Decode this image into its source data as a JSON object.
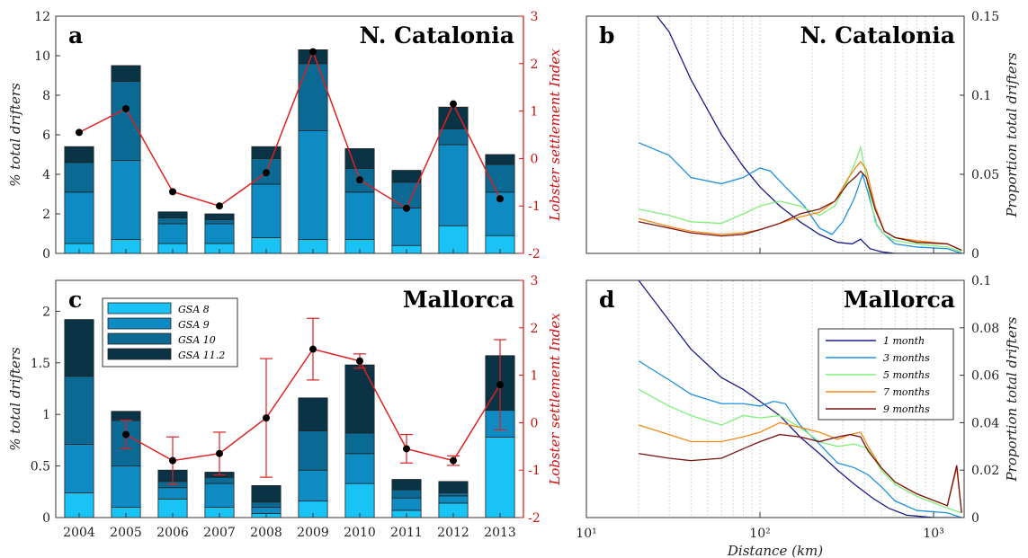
{
  "chart_data": [
    {
      "id": "a",
      "type": "bar",
      "panel_label": "a",
      "title": "N. Catalonia",
      "ylabel": "% total drifters",
      "y2label": "Lobster settlement Index",
      "categories": [
        "2004",
        "2005",
        "2006",
        "2007",
        "2008",
        "2009",
        "2010",
        "2011",
        "2012",
        "2013"
      ],
      "ylim": [
        0,
        12
      ],
      "yticks": [
        0,
        2,
        4,
        6,
        8,
        10,
        12
      ],
      "y2lim": [
        -2,
        3
      ],
      "y2ticks": [
        -2,
        -1,
        0,
        1,
        2,
        3
      ],
      "series": [
        {
          "name": "GSA 8",
          "color": "#19c3f5",
          "values": [
            0.5,
            0.7,
            0.5,
            0.5,
            0.8,
            0.7,
            0.7,
            0.4,
            1.4,
            0.9
          ]
        },
        {
          "name": "GSA 9",
          "color": "#0d8bc2",
          "values": [
            2.6,
            4.0,
            1.0,
            1.0,
            2.7,
            5.5,
            2.4,
            1.9,
            4.1,
            2.2
          ]
        },
        {
          "name": "GSA 10",
          "color": "#0a6a93",
          "values": [
            1.5,
            4.0,
            0.3,
            0.2,
            1.3,
            3.4,
            1.2,
            1.3,
            0.8,
            1.4
          ]
        },
        {
          "name": "GSA 11.2",
          "color": "#0a3345",
          "values": [
            0.8,
            0.8,
            0.3,
            0.3,
            0.6,
            0.7,
            1.0,
            0.6,
            1.1,
            0.5
          ]
        }
      ],
      "index_line": {
        "color": "#e02020",
        "values": [
          0.55,
          1.05,
          -0.7,
          -1.0,
          -0.3,
          2.25,
          -0.45,
          -1.05,
          1.15,
          -0.85
        ]
      }
    },
    {
      "id": "c",
      "type": "bar",
      "panel_label": "c",
      "title": "Mallorca",
      "ylabel": "% total drifters",
      "y2label": "Lobster settlement Index",
      "categories": [
        "2004",
        "2005",
        "2006",
        "2007",
        "2008",
        "2009",
        "2010",
        "2011",
        "2012",
        "2013"
      ],
      "ylim": [
        0,
        2.3
      ],
      "yticks": [
        0,
        0.5,
        1,
        1.5,
        2
      ],
      "y2lim": [
        -2,
        3
      ],
      "y2ticks": [
        -2,
        -1,
        0,
        1,
        2,
        3
      ],
      "series": [
        {
          "name": "GSA 8",
          "color": "#19c3f5",
          "values": [
            0.24,
            0.1,
            0.18,
            0.1,
            0.04,
            0.16,
            0.33,
            0.07,
            0.14,
            0.78
          ]
        },
        {
          "name": "GSA 9",
          "color": "#0d8bc2",
          "values": [
            0.47,
            0.4,
            0.11,
            0.23,
            0.06,
            0.3,
            0.29,
            0.12,
            0.07,
            0.26
          ]
        },
        {
          "name": "GSA 10",
          "color": "#0a6a93",
          "values": [
            0.66,
            0.44,
            0.06,
            0.06,
            0.05,
            0.38,
            0.2,
            0.08,
            0.03,
            0.0
          ]
        },
        {
          "name": "GSA 11.2",
          "color": "#0a3345",
          "values": [
            0.55,
            0.09,
            0.11,
            0.05,
            0.16,
            0.32,
            0.66,
            0.1,
            0.11,
            0.53
          ]
        }
      ],
      "index_line": {
        "color": "#e02020",
        "values": [
          null,
          -0.25,
          -0.8,
          -0.65,
          0.1,
          1.55,
          1.3,
          -0.55,
          -0.8,
          0.8
        ]
      },
      "index_error": [
        null,
        0.3,
        0.5,
        0.45,
        1.25,
        0.65,
        0.15,
        0.3,
        0.1,
        0.95
      ],
      "legend": {
        "position": "top-left",
        "entries": [
          "GSA 8",
          "GSA 9",
          "GSA 10",
          "GSA 11.2"
        ]
      }
    },
    {
      "id": "b",
      "type": "line",
      "panel_label": "b",
      "title": "N. Catalonia",
      "ylabel": "Proportion total drifters",
      "xscale": "log",
      "xlim": [
        10,
        1500
      ],
      "ylim": [
        0,
        0.15
      ],
      "yticks": [
        0,
        0.05,
        0.1,
        0.15
      ],
      "ytick_labels": [
        "0",
        "0.05",
        "0.1",
        "0.15"
      ],
      "grid_x": true,
      "series": [
        {
          "name": "1 month",
          "color": "#1a1a8c",
          "points": [
            [
              20,
              0.165
            ],
            [
              30,
              0.14
            ],
            [
              40,
              0.11
            ],
            [
              60,
              0.075
            ],
            [
              80,
              0.055
            ],
            [
              100,
              0.042
            ],
            [
              130,
              0.03
            ],
            [
              170,
              0.02
            ],
            [
              220,
              0.012
            ],
            [
              280,
              0.007
            ],
            [
              340,
              0.006
            ],
            [
              380,
              0.009
            ],
            [
              430,
              0.003
            ],
            [
              500,
              0.001
            ],
            [
              600,
              0.0
            ],
            [
              1450,
              0.0
            ]
          ]
        },
        {
          "name": "3 months",
          "color": "#1e8fde",
          "points": [
            [
              20,
              0.07
            ],
            [
              30,
              0.062
            ],
            [
              40,
              0.048
            ],
            [
              60,
              0.044
            ],
            [
              80,
              0.048
            ],
            [
              100,
              0.054
            ],
            [
              115,
              0.052
            ],
            [
              140,
              0.042
            ],
            [
              180,
              0.03
            ],
            [
              220,
              0.016
            ],
            [
              260,
              0.012
            ],
            [
              300,
              0.02
            ],
            [
              350,
              0.035
            ],
            [
              390,
              0.05
            ],
            [
              420,
              0.038
            ],
            [
              470,
              0.018
            ],
            [
              520,
              0.012
            ],
            [
              600,
              0.006
            ],
            [
              800,
              0.004
            ],
            [
              1200,
              0.003
            ],
            [
              1450,
              0.0
            ]
          ]
        },
        {
          "name": "5 months",
          "color": "#7ef07a",
          "points": [
            [
              20,
              0.028
            ],
            [
              30,
              0.024
            ],
            [
              40,
              0.02
            ],
            [
              60,
              0.019
            ],
            [
              80,
              0.025
            ],
            [
              100,
              0.03
            ],
            [
              130,
              0.033
            ],
            [
              170,
              0.03
            ],
            [
              220,
              0.024
            ],
            [
              270,
              0.03
            ],
            [
              320,
              0.046
            ],
            [
              360,
              0.06
            ],
            [
              380,
              0.067
            ],
            [
              410,
              0.048
            ],
            [
              460,
              0.02
            ],
            [
              520,
              0.012
            ],
            [
              600,
              0.008
            ],
            [
              800,
              0.006
            ],
            [
              1200,
              0.004
            ],
            [
              1450,
              0.001
            ]
          ]
        },
        {
          "name": "7 months",
          "color": "#f08a1a",
          "points": [
            [
              20,
              0.022
            ],
            [
              30,
              0.017
            ],
            [
              40,
              0.014
            ],
            [
              60,
              0.012
            ],
            [
              80,
              0.013
            ],
            [
              100,
              0.015
            ],
            [
              130,
              0.019
            ],
            [
              170,
              0.023
            ],
            [
              220,
              0.026
            ],
            [
              270,
              0.033
            ],
            [
              320,
              0.047
            ],
            [
              360,
              0.055
            ],
            [
              380,
              0.058
            ],
            [
              410,
              0.053
            ],
            [
              460,
              0.03
            ],
            [
              520,
              0.014
            ],
            [
              600,
              0.01
            ],
            [
              800,
              0.008
            ],
            [
              1200,
              0.006
            ],
            [
              1450,
              0.002
            ]
          ]
        },
        {
          "name": "9 months",
          "color": "#7a1010",
          "points": [
            [
              20,
              0.02
            ],
            [
              30,
              0.016
            ],
            [
              40,
              0.013
            ],
            [
              60,
              0.011
            ],
            [
              80,
              0.012
            ],
            [
              100,
              0.015
            ],
            [
              130,
              0.019
            ],
            [
              170,
              0.025
            ],
            [
              220,
              0.028
            ],
            [
              270,
              0.033
            ],
            [
              320,
              0.044
            ],
            [
              360,
              0.049
            ],
            [
              380,
              0.052
            ],
            [
              410,
              0.048
            ],
            [
              460,
              0.028
            ],
            [
              520,
              0.014
            ],
            [
              600,
              0.01
            ],
            [
              800,
              0.007
            ],
            [
              1200,
              0.006
            ],
            [
              1450,
              0.002
            ]
          ]
        }
      ]
    },
    {
      "id": "d",
      "type": "line",
      "panel_label": "d",
      "title": "Mallorca",
      "xlabel": "Distance (km)",
      "ylabel": "Proportion total drifters",
      "xscale": "log",
      "xlim": [
        10,
        1500
      ],
      "xticks": [
        10,
        100,
        1000
      ],
      "xtick_labels": [
        "10¹",
        "10²",
        "10³"
      ],
      "ylim": [
        0,
        0.1
      ],
      "yticks": [
        0,
        0.02,
        0.04,
        0.06,
        0.08,
        0.1
      ],
      "ytick_labels": [
        "0",
        "0.02",
        "0.04",
        "0.06",
        "0.08",
        "0.1"
      ],
      "grid_x": true,
      "legend": {
        "position": "right",
        "entries": [
          "1 month",
          "3 months",
          "5 months",
          "7 months",
          "9 months"
        ]
      },
      "series": [
        {
          "name": "1 month",
          "color": "#1a1a8c",
          "points": [
            [
              20,
              0.1
            ],
            [
              30,
              0.083
            ],
            [
              40,
              0.071
            ],
            [
              60,
              0.059
            ],
            [
              80,
              0.054
            ],
            [
              100,
              0.049
            ],
            [
              130,
              0.043
            ],
            [
              170,
              0.034
            ],
            [
              220,
              0.027
            ],
            [
              280,
              0.02
            ],
            [
              350,
              0.014
            ],
            [
              450,
              0.008
            ],
            [
              550,
              0.004
            ],
            [
              700,
              0.001
            ],
            [
              1000,
              0.0
            ],
            [
              1450,
              0.0
            ]
          ]
        },
        {
          "name": "3 months",
          "color": "#1e8fde",
          "points": [
            [
              20,
              0.066
            ],
            [
              30,
              0.058
            ],
            [
              40,
              0.052
            ],
            [
              60,
              0.048
            ],
            [
              80,
              0.048
            ],
            [
              100,
              0.047
            ],
            [
              120,
              0.049
            ],
            [
              140,
              0.048
            ],
            [
              170,
              0.039
            ],
            [
              220,
              0.031
            ],
            [
              280,
              0.023
            ],
            [
              350,
              0.021
            ],
            [
              420,
              0.018
            ],
            [
              500,
              0.013
            ],
            [
              600,
              0.007
            ],
            [
              800,
              0.003
            ],
            [
              1200,
              0.002
            ],
            [
              1450,
              0.0
            ]
          ]
        },
        {
          "name": "5 months",
          "color": "#7ef07a",
          "points": [
            [
              20,
              0.054
            ],
            [
              30,
              0.047
            ],
            [
              40,
              0.043
            ],
            [
              60,
              0.039
            ],
            [
              80,
              0.043
            ],
            [
              100,
              0.042
            ],
            [
              130,
              0.043
            ],
            [
              170,
              0.038
            ],
            [
              220,
              0.032
            ],
            [
              280,
              0.03
            ],
            [
              350,
              0.031
            ],
            [
              420,
              0.029
            ],
            [
              500,
              0.02
            ],
            [
              600,
              0.014
            ],
            [
              800,
              0.009
            ],
            [
              1200,
              0.004
            ],
            [
              1450,
              0.002
            ]
          ]
        },
        {
          "name": "7 months",
          "color": "#f08a1a",
          "points": [
            [
              20,
              0.039
            ],
            [
              30,
              0.035
            ],
            [
              40,
              0.032
            ],
            [
              60,
              0.032
            ],
            [
              80,
              0.034
            ],
            [
              100,
              0.036
            ],
            [
              130,
              0.04
            ],
            [
              170,
              0.038
            ],
            [
              220,
              0.036
            ],
            [
              280,
              0.033
            ],
            [
              330,
              0.035
            ],
            [
              380,
              0.036
            ],
            [
              420,
              0.03
            ],
            [
              500,
              0.021
            ],
            [
              600,
              0.015
            ],
            [
              800,
              0.01
            ],
            [
              1200,
              0.005
            ],
            [
              1360,
              0.021
            ],
            [
              1450,
              0.002
            ]
          ]
        },
        {
          "name": "9 months",
          "color": "#7a1010",
          "points": [
            [
              20,
              0.027
            ],
            [
              30,
              0.025
            ],
            [
              40,
              0.024
            ],
            [
              60,
              0.025
            ],
            [
              80,
              0.029
            ],
            [
              100,
              0.032
            ],
            [
              130,
              0.035
            ],
            [
              170,
              0.034
            ],
            [
              220,
              0.032
            ],
            [
              280,
              0.034
            ],
            [
              330,
              0.035
            ],
            [
              380,
              0.034
            ],
            [
              420,
              0.028
            ],
            [
              500,
              0.021
            ],
            [
              600,
              0.015
            ],
            [
              800,
              0.01
            ],
            [
              1200,
              0.005
            ],
            [
              1360,
              0.022
            ],
            [
              1450,
              0.002
            ]
          ]
        }
      ]
    }
  ]
}
